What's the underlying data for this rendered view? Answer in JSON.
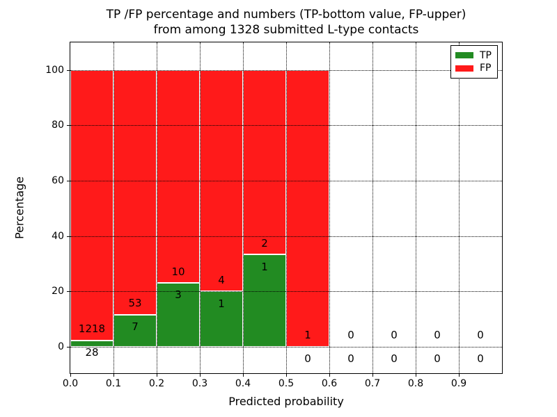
{
  "figure": {
    "title_line1": "TP /FP percentage and numbers (TP-bottom value, FP-upper)",
    "title_line2": "from among 1328 submitted L-type contacts",
    "xlabel": "Predicted probability",
    "ylabel": "Percentage",
    "background": "#ffffff"
  },
  "legend": {
    "position": "upper-right",
    "entries": [
      {
        "label": "TP",
        "color": "#228B22"
      },
      {
        "label": "FP",
        "color": "#FF1A1A"
      }
    ]
  },
  "chart_data": {
    "type": "bar",
    "stacked": true,
    "title": "TP /FP percentage and numbers (TP-bottom value, FP-upper) from among 1328 submitted L-type contacts",
    "xlabel": "Predicted probability",
    "ylabel": "Percentage",
    "total_submitted": 1328,
    "xlim": [
      0.0,
      1.0
    ],
    "ylim": [
      -9.5,
      110
    ],
    "x_ticks": [
      "0.0",
      "0.1",
      "0.2",
      "0.3",
      "0.4",
      "0.5",
      "0.6",
      "0.7",
      "0.8",
      "0.9"
    ],
    "y_ticks": [
      0,
      20,
      40,
      60,
      80,
      100
    ],
    "grid": "dotted",
    "legend_position": "upper right",
    "bin_width": 0.1,
    "bin_starts": [
      0.0,
      0.1,
      0.2,
      0.3,
      0.4,
      0.5,
      0.6,
      0.7,
      0.8,
      0.9
    ],
    "series": [
      {
        "name": "TP",
        "color": "#228B22",
        "counts": [
          28,
          7,
          3,
          1,
          1,
          0,
          0,
          0,
          0,
          0
        ]
      },
      {
        "name": "FP",
        "color": "#FF1A1A",
        "counts": [
          1218,
          53,
          10,
          4,
          2,
          1,
          0,
          0,
          0,
          0
        ]
      }
    ],
    "tp_percent": [
      2.25,
      11.67,
      23.08,
      20.0,
      33.33,
      0.0,
      null,
      null,
      null,
      null
    ],
    "bar_top_percent": 100
  }
}
